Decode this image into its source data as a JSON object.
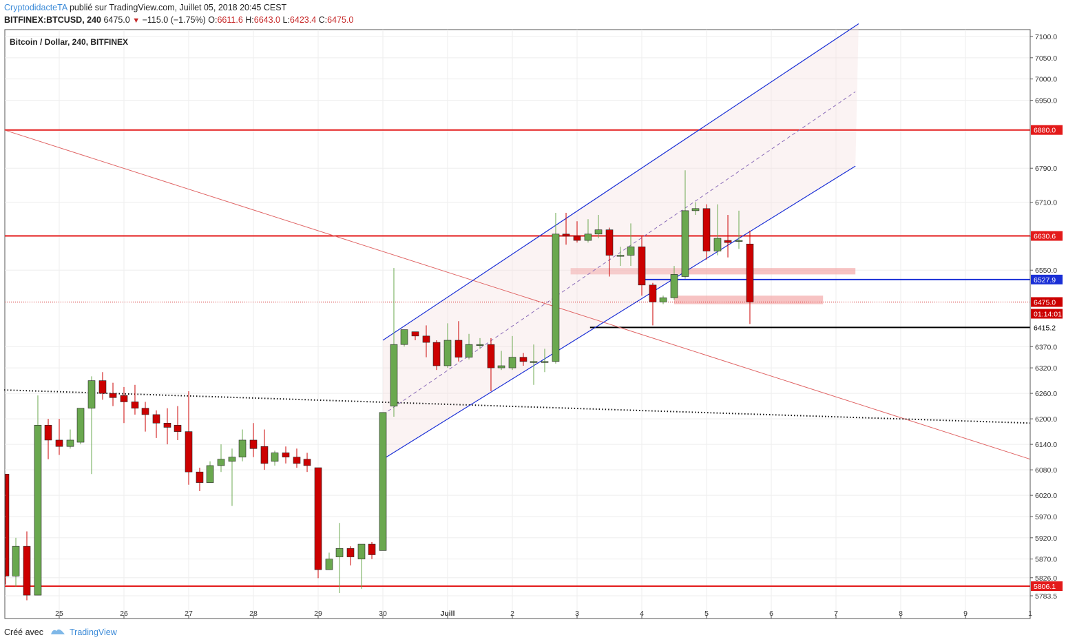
{
  "header": {
    "author": "CryptodidacteTA",
    "published": "publié sur TradingView.com, Juillet 05, 2018 20:45 CEST",
    "symbol": "BITFINEX:BTCUSD, 240",
    "last": "6475.0",
    "change": "−115.0 (−1.75%)",
    "o_label": "O:",
    "o_value": "6611.6",
    "h_label": "H:",
    "h_value": "6643.0",
    "l_label": "L:",
    "l_value": "6423.4",
    "c_label": "C:",
    "c_value": "6475.0"
  },
  "footer": {
    "created": "Créé avec",
    "brand": "TradingView"
  },
  "colors": {
    "up": "#6aa84f",
    "down": "#cc0000",
    "channel": "#1a2fd6",
    "resistance": "#e31a1a",
    "trendline": "#e06666",
    "support_black": "#000000",
    "zone": "#f2a3a3",
    "last_price": "#cc0000"
  },
  "chart_data": {
    "type": "candlestick",
    "title": "Bitcoin / Dollar, 240, BITFINEX",
    "timeframe": "240",
    "ylim": [
      5760,
      7120
    ],
    "y_ticks": [
      5783.5,
      5826.0,
      5870.0,
      5920.0,
      5970.0,
      6020.0,
      6080.0,
      6140.0,
      6200.0,
      6260.0,
      6320.0,
      6370.0,
      6550.0,
      6630.0,
      6710.0,
      6790.0,
      6950.0,
      7000.0,
      7050.0,
      7100.0
    ],
    "x_ticks": [
      {
        "label": "25",
        "x": 0
      },
      {
        "label": "26",
        "x": 1
      },
      {
        "label": "27",
        "x": 2
      },
      {
        "label": "28",
        "x": 3
      },
      {
        "label": "29",
        "x": 4
      },
      {
        "label": "30",
        "x": 5
      },
      {
        "label": "Juill",
        "x": 6
      },
      {
        "label": "2",
        "x": 7
      },
      {
        "label": "3",
        "x": 8
      },
      {
        "label": "4",
        "x": 9
      },
      {
        "label": "5",
        "x": 10
      },
      {
        "label": "6",
        "x": 11
      },
      {
        "label": "7",
        "x": 12
      },
      {
        "label": "8",
        "x": 13
      },
      {
        "label": "9",
        "x": 14
      },
      {
        "label": "1",
        "x": 15
      }
    ],
    "candles": [
      {
        "t": -0.83,
        "o": 6070,
        "h": 6070,
        "c": 5830,
        "l": 5810
      },
      {
        "t": -0.67,
        "o": 5830,
        "h": 5920,
        "c": 5900,
        "l": 5805
      },
      {
        "t": -0.5,
        "o": 5900,
        "h": 5935,
        "c": 5785,
        "l": 5773
      },
      {
        "t": -0.33,
        "o": 5785,
        "h": 6255,
        "c": 6185,
        "l": 5785
      },
      {
        "t": -0.17,
        "o": 6185,
        "h": 6200,
        "c": 6150,
        "l": 6105
      },
      {
        "t": 0.0,
        "o": 6150,
        "h": 6200,
        "c": 6135,
        "l": 6115
      },
      {
        "t": 0.17,
        "o": 6135,
        "h": 6175,
        "c": 6150,
        "l": 6130
      },
      {
        "t": 0.33,
        "o": 6145,
        "h": 6225,
        "c": 6225,
        "l": 6140
      },
      {
        "t": 0.5,
        "o": 6225,
        "h": 6300,
        "c": 6290,
        "l": 6070
      },
      {
        "t": 0.67,
        "o": 6290,
        "h": 6310,
        "c": 6260,
        "l": 6245
      },
      {
        "t": 0.83,
        "o": 6260,
        "h": 6285,
        "c": 6250,
        "l": 6230
      },
      {
        "t": 1.0,
        "o": 6255,
        "h": 6275,
        "c": 6240,
        "l": 6190
      },
      {
        "t": 1.17,
        "o": 6240,
        "h": 6280,
        "c": 6225,
        "l": 6210
      },
      {
        "t": 1.33,
        "o": 6225,
        "h": 6240,
        "c": 6210,
        "l": 6170
      },
      {
        "t": 1.5,
        "o": 6210,
        "h": 6220,
        "c": 6190,
        "l": 6155
      },
      {
        "t": 1.67,
        "o": 6190,
        "h": 6225,
        "c": 6180,
        "l": 6140
      },
      {
        "t": 1.83,
        "o": 6185,
        "h": 6230,
        "c": 6170,
        "l": 6150
      },
      {
        "t": 2.0,
        "o": 6170,
        "h": 6265,
        "c": 6075,
        "l": 6045
      },
      {
        "t": 2.17,
        "o": 6075,
        "h": 6085,
        "c": 6050,
        "l": 6030
      },
      {
        "t": 2.33,
        "o": 6050,
        "h": 6100,
        "c": 6090,
        "l": 6050
      },
      {
        "t": 2.5,
        "o": 6090,
        "h": 6140,
        "c": 6105,
        "l": 6075
      },
      {
        "t": 2.67,
        "o": 6100,
        "h": 6130,
        "c": 6110,
        "l": 5995
      },
      {
        "t": 2.83,
        "o": 6110,
        "h": 6175,
        "c": 6150,
        "l": 6100
      },
      {
        "t": 3.0,
        "o": 6150,
        "h": 6190,
        "c": 6130,
        "l": 6110
      },
      {
        "t": 3.17,
        "o": 6135,
        "h": 6175,
        "c": 6095,
        "l": 6080
      },
      {
        "t": 3.33,
        "o": 6100,
        "h": 6125,
        "c": 6120,
        "l": 6090
      },
      {
        "t": 3.5,
        "o": 6120,
        "h": 6135,
        "c": 6110,
        "l": 6095
      },
      {
        "t": 3.67,
        "o": 6110,
        "h": 6130,
        "c": 6095,
        "l": 6085
      },
      {
        "t": 3.83,
        "o": 6105,
        "h": 6120,
        "c": 6090,
        "l": 6075
      },
      {
        "t": 4.0,
        "o": 6085,
        "h": 6085,
        "c": 5845,
        "l": 5825
      },
      {
        "t": 4.17,
        "o": 5845,
        "h": 5885,
        "c": 5870,
        "l": 5845
      },
      {
        "t": 4.33,
        "o": 5875,
        "h": 5955,
        "c": 5895,
        "l": 5790
      },
      {
        "t": 4.5,
        "o": 5895,
        "h": 5900,
        "c": 5875,
        "l": 5855
      },
      {
        "t": 4.67,
        "o": 5870,
        "h": 5905,
        "c": 5905,
        "l": 5800
      },
      {
        "t": 4.83,
        "o": 5905,
        "h": 5910,
        "c": 5880,
        "l": 5870
      },
      {
        "t": 5.0,
        "o": 5890,
        "h": 6215,
        "c": 6215,
        "l": 5890
      },
      {
        "t": 5.17,
        "o": 6230,
        "h": 6555,
        "c": 6375,
        "l": 6205
      },
      {
        "t": 5.33,
        "o": 6375,
        "h": 6405,
        "c": 6410,
        "l": 6370
      },
      {
        "t": 5.5,
        "o": 6405,
        "h": 6400,
        "c": 6395,
        "l": 6385
      },
      {
        "t": 5.67,
        "o": 6395,
        "h": 6420,
        "c": 6380,
        "l": 6345
      },
      {
        "t": 5.83,
        "o": 6380,
        "h": 6385,
        "c": 6325,
        "l": 6315
      },
      {
        "t": 6.0,
        "o": 6325,
        "h": 6425,
        "c": 6385,
        "l": 6320
      },
      {
        "t": 6.17,
        "o": 6385,
        "h": 6430,
        "c": 6345,
        "l": 6335
      },
      {
        "t": 6.33,
        "o": 6345,
        "h": 6400,
        "c": 6375,
        "l": 6340
      },
      {
        "t": 6.5,
        "o": 6375,
        "h": 6390,
        "c": 6375,
        "l": 6365
      },
      {
        "t": 6.67,
        "o": 6375,
        "h": 6390,
        "c": 6320,
        "l": 6265
      },
      {
        "t": 6.83,
        "o": 6320,
        "h": 6360,
        "c": 6325,
        "l": 6315
      },
      {
        "t": 7.0,
        "o": 6320,
        "h": 6395,
        "c": 6345,
        "l": 6315
      },
      {
        "t": 7.17,
        "o": 6345,
        "h": 6355,
        "c": 6335,
        "l": 6325
      },
      {
        "t": 7.33,
        "o": 6335,
        "h": 6375,
        "c": 6335,
        "l": 6280
      },
      {
        "t": 7.5,
        "o": 6335,
        "h": 6365,
        "c": 6335,
        "l": 6310
      },
      {
        "t": 7.67,
        "o": 6335,
        "h": 6685,
        "c": 6635,
        "l": 6330
      },
      {
        "t": 7.83,
        "o": 6635,
        "h": 6685,
        "c": 6630,
        "l": 6610
      },
      {
        "t": 8.0,
        "o": 6630,
        "h": 6665,
        "c": 6620,
        "l": 6615
      },
      {
        "t": 8.17,
        "o": 6620,
        "h": 6670,
        "c": 6635,
        "l": 6615
      },
      {
        "t": 8.33,
        "o": 6635,
        "h": 6680,
        "c": 6645,
        "l": 6625
      },
      {
        "t": 8.5,
        "o": 6645,
        "h": 6650,
        "c": 6585,
        "l": 6535
      },
      {
        "t": 8.67,
        "o": 6585,
        "h": 6605,
        "c": 6585,
        "l": 6560
      },
      {
        "t": 8.83,
        "o": 6585,
        "h": 6660,
        "c": 6605,
        "l": 6560
      },
      {
        "t": 9.0,
        "o": 6605,
        "h": 6630,
        "c": 6515,
        "l": 6490
      },
      {
        "t": 9.17,
        "o": 6515,
        "h": 6520,
        "c": 6475,
        "l": 6420
      },
      {
        "t": 9.33,
        "o": 6475,
        "h": 6490,
        "c": 6485,
        "l": 6470
      },
      {
        "t": 9.5,
        "o": 6485,
        "h": 6560,
        "c": 6540,
        "l": 6480
      },
      {
        "t": 9.67,
        "o": 6535,
        "h": 6785,
        "c": 6690,
        "l": 6530
      },
      {
        "t": 9.83,
        "o": 6690,
        "h": 6710,
        "c": 6695,
        "l": 6680
      },
      {
        "t": 10.0,
        "o": 6695,
        "h": 6705,
        "c": 6595,
        "l": 6575
      },
      {
        "t": 10.17,
        "o": 6595,
        "h": 6705,
        "c": 6625,
        "l": 6585
      },
      {
        "t": 10.33,
        "o": 6620,
        "h": 6680,
        "c": 6615,
        "l": 6580
      },
      {
        "t": 10.5,
        "o": 6620,
        "h": 6690,
        "c": 6620,
        "l": 6600
      },
      {
        "t": 10.67,
        "o": 6611.6,
        "h": 6643.0,
        "c": 6475.0,
        "l": 6423.4
      }
    ],
    "horizontal_levels": [
      {
        "price": 6880.0,
        "label": "6880.0",
        "color": "#e31a1a",
        "style": "solid"
      },
      {
        "price": 6630.6,
        "label": "6630.6",
        "color": "#e31a1a",
        "style": "solid"
      },
      {
        "price": 5806.1,
        "label": "5806.1",
        "color": "#e31a1a",
        "style": "solid"
      },
      {
        "price": 6527.9,
        "label": "6527.9",
        "color": "#1a2fd6",
        "style": "solid",
        "x_start": 9.0
      },
      {
        "price": 6415.2,
        "label": "6415.2",
        "color": "#000000",
        "style": "solid",
        "x_start": 8.2
      }
    ],
    "last_price": {
      "price": 6475.0,
      "label": "6475.0",
      "countdown": "01:14:01"
    },
    "channel": {
      "upper": [
        [
          5.0,
          6385
        ],
        [
          12.35,
          7130
        ]
      ],
      "lower": [
        [
          5.0,
          6105
        ],
        [
          12.3,
          6795
        ]
      ],
      "mid": [
        [
          5.0,
          6210
        ],
        [
          12.3,
          6970
        ]
      ]
    },
    "trendlines": [
      {
        "from": [
          -0.85,
          6880
        ],
        "to": [
          15.0,
          6105
        ],
        "style": "solid"
      },
      {
        "from": [
          -0.85,
          6268
        ],
        "to": [
          15.0,
          6190
        ],
        "style": "dotted"
      }
    ],
    "zones": [
      {
        "x0": 7.9,
        "x1": 12.3,
        "y0": 6540,
        "y1": 6555
      },
      {
        "x0": 9.5,
        "x1": 11.8,
        "y0": 6470,
        "y1": 6490
      }
    ],
    "grid": true
  }
}
